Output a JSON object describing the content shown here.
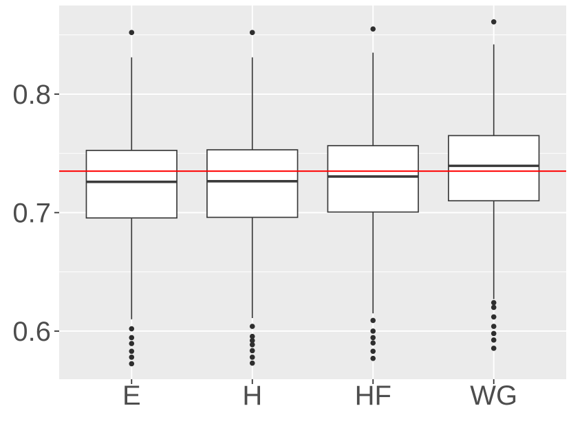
{
  "chart_data": {
    "type": "boxplot",
    "title": "",
    "xlabel": "",
    "ylabel": "",
    "categories": [
      "E",
      "H",
      "HF",
      "WG"
    ],
    "y_axis": {
      "tick_labels": [
        "0.6",
        "0.7",
        "0.8"
      ],
      "major_ticks": [
        0.6,
        0.7,
        0.8
      ],
      "minor_ticks": [
        0.65,
        0.75,
        0.85
      ],
      "range": [
        0.5594,
        0.8748
      ],
      "grid": true
    },
    "x_axis": {
      "grid_at_categories": true
    },
    "reference_line": {
      "value": 0.735,
      "color": "#FF0000"
    },
    "series": [
      {
        "label": "E",
        "whisker_low": 0.61,
        "q1": 0.6955,
        "median": 0.726,
        "q3": 0.7525,
        "whisker_high": 0.831,
        "outliers_high": [
          0.852
        ],
        "outliers_low": [
          0.602,
          0.5945,
          0.5895,
          0.583,
          0.578,
          0.5725
        ]
      },
      {
        "label": "H",
        "whisker_low": 0.611,
        "q1": 0.696,
        "median": 0.7265,
        "q3": 0.753,
        "whisker_high": 0.831,
        "outliers_high": [
          0.852
        ],
        "outliers_low": [
          0.604,
          0.5955,
          0.592,
          0.5885,
          0.5835,
          0.578,
          0.573
        ]
      },
      {
        "label": "HF",
        "whisker_low": 0.615,
        "q1": 0.7005,
        "median": 0.7305,
        "q3": 0.7565,
        "whisker_high": 0.835,
        "outliers_high": [
          0.855
        ],
        "outliers_low": [
          0.609,
          0.6,
          0.5945,
          0.59,
          0.583,
          0.577
        ]
      },
      {
        "label": "WG",
        "whisker_low": 0.627,
        "q1": 0.71,
        "median": 0.7395,
        "q3": 0.765,
        "whisker_high": 0.842,
        "outliers_high": [
          0.861
        ],
        "outliers_low": [
          0.624,
          0.62,
          0.612,
          0.604,
          0.598,
          0.5925,
          0.5855
        ]
      }
    ],
    "colors": {
      "panel_background": "#EBEBEB",
      "grid": "#FFFFFF",
      "box_fill": "#FFFFFF",
      "box_stroke": "#3A3A3A",
      "outlier": "#2E2E2E",
      "axis_text": "#4D4D4D",
      "tick_mark": "#333333",
      "reference_line": "#FF0000"
    }
  }
}
